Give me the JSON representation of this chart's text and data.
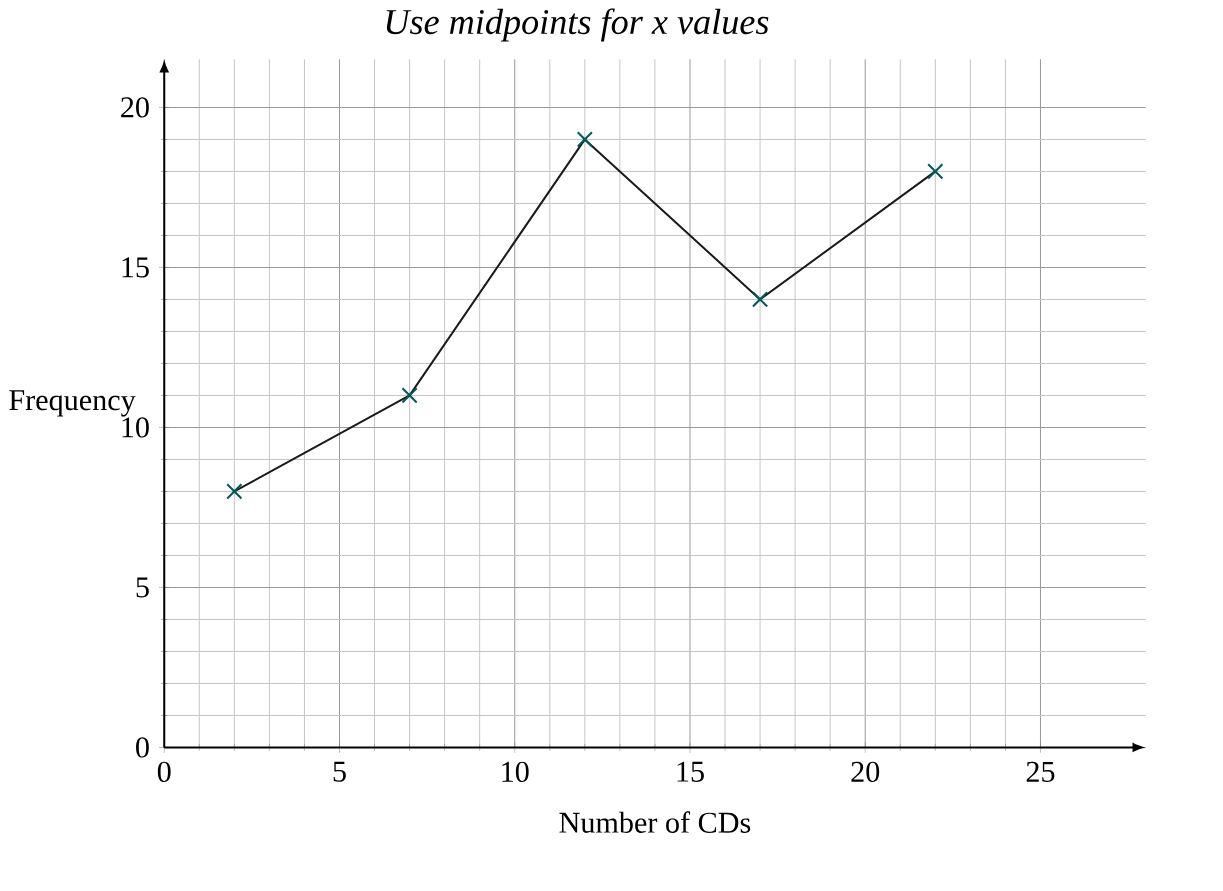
{
  "chart_data": {
    "type": "line",
    "xlabel": "Number of CDs",
    "ylabel": "Frequency",
    "annotations": [
      "Use midpoints for x values"
    ],
    "x": [
      2,
      7,
      12,
      17,
      22
    ],
    "values": [
      8,
      11,
      19,
      14,
      18
    ],
    "color": "#1a1a1a",
    "xlim": [
      0,
      28
    ],
    "ylim": [
      0,
      21.5
    ],
    "xticks": [
      0,
      5,
      10,
      15,
      20,
      25
    ],
    "yticks": [
      0,
      5,
      10,
      15,
      20
    ],
    "grid": true,
    "marker": "cross",
    "line_style": "solid"
  }
}
